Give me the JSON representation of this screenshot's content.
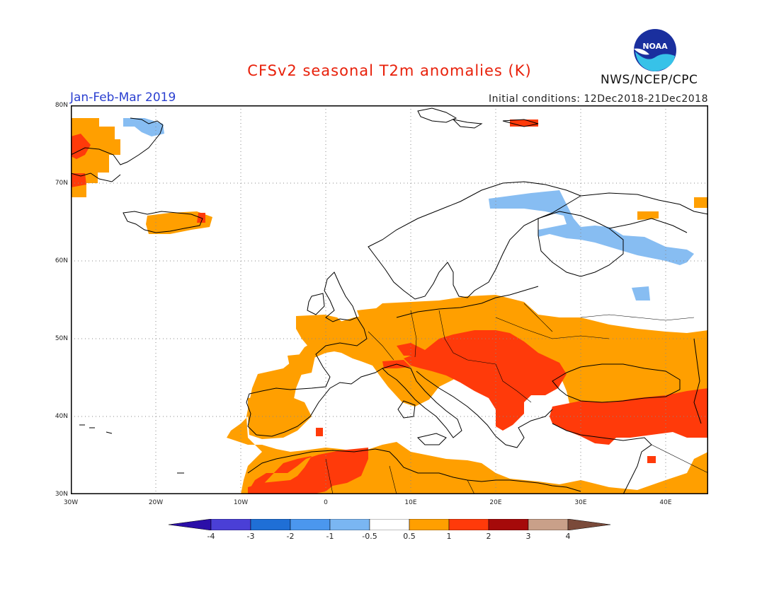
{
  "header": {
    "title": "CFSv2 seasonal T2m anomalies (K)",
    "period": "Jan-Feb-Mar 2019",
    "initial_conditions": "Initial conditions: 12Dec2018-21Dec2018",
    "agency": "NWS/NCEP/CPC",
    "logo_text": "NOAA"
  },
  "map": {
    "extent": {
      "lon_min": -30,
      "lon_max": 45,
      "lat_min": 30,
      "lat_max": 80
    },
    "lat_labels": [
      "80N",
      "70N",
      "60N",
      "50N",
      "40N",
      "30N"
    ],
    "lon_labels": [
      "30W",
      "20W",
      "10W",
      "0",
      "10E",
      "20E",
      "30E",
      "40E"
    ],
    "grid": "dotted every 10 degrees",
    "anomaly_regions": [
      {
        "region": "Greenland east coast",
        "anomaly": "0.5 to 1, locally 1 to 2"
      },
      {
        "region": "Svalbard / NE Greenland",
        "anomaly": "-1 to -0.5"
      },
      {
        "region": "Iceland",
        "anomaly": "0.5 to 1"
      },
      {
        "region": "Northern Scandinavia / NW Russia",
        "anomaly": "-1 to -0.5"
      },
      {
        "region": "Western and Central Europe",
        "anomaly": "0.5 to 1"
      },
      {
        "region": "Central and SE Europe (Alps to Balkans, Romania)",
        "anomaly": "1 to 2"
      },
      {
        "region": "Turkey / Anatolia",
        "anomaly": "1 to 2"
      },
      {
        "region": "Iberia and North Africa",
        "anomaly": "0.5 to 1, locally 1 to 2"
      },
      {
        "region": "Mediterranean Sea",
        "anomaly": "-0.5 to 0.5"
      }
    ]
  },
  "colorbar": {
    "tick_labels": [
      "-4",
      "-3",
      "-2",
      "-1",
      "-0.5",
      "0.5",
      "1",
      "2",
      "3",
      "4"
    ],
    "colors": [
      "#2b0fa8",
      "#4a3fd6",
      "#1f6fd6",
      "#4b97ee",
      "#7ab6f2",
      "#ffffff",
      "#ff9f00",
      "#ff3a0a",
      "#a50a0a",
      "#c9a089",
      "#7a4a3a"
    ]
  }
}
